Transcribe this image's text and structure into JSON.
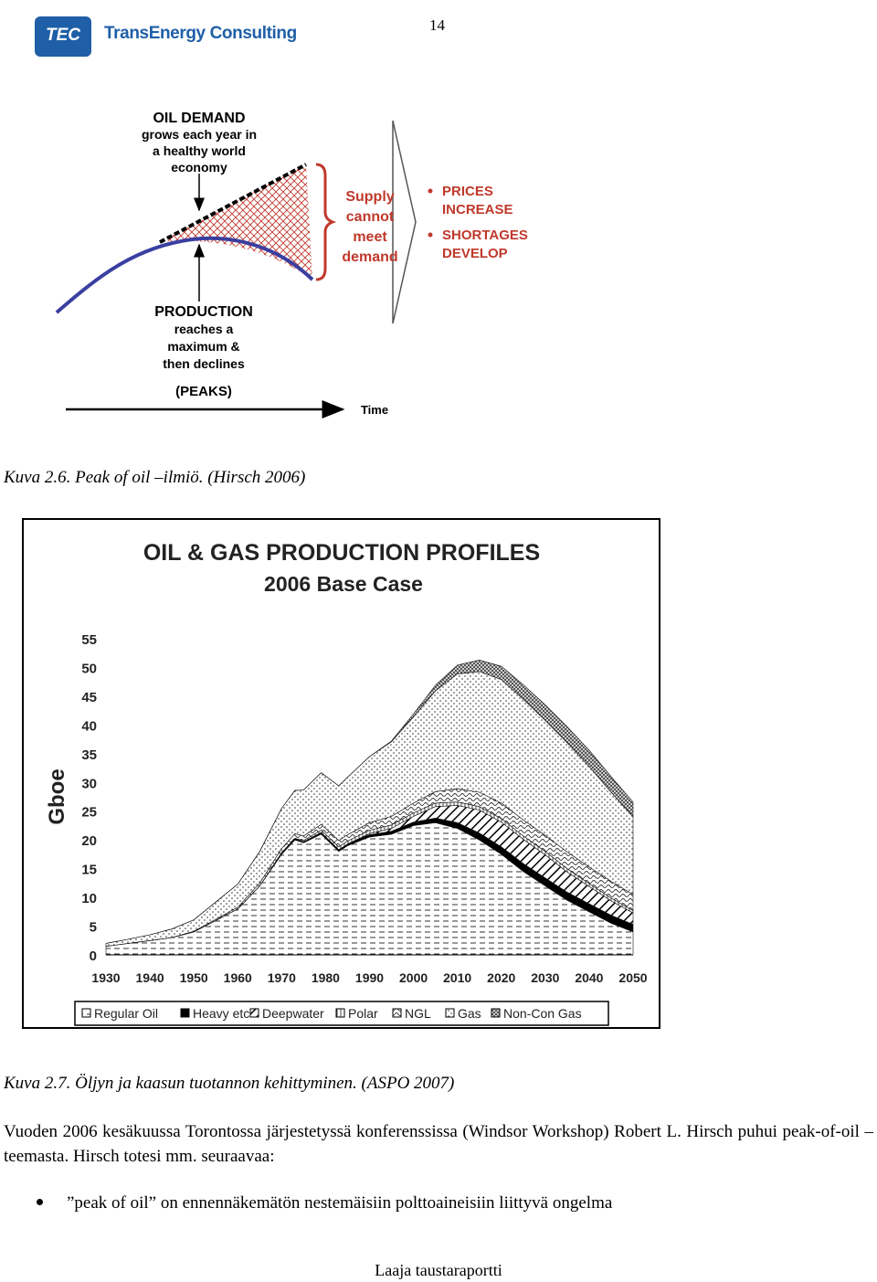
{
  "page_number": "14",
  "logo": {
    "mark": "TEC",
    "name": "TransEnergy Consulting"
  },
  "diagram": {
    "demand_title": "OIL DEMAND",
    "demand_lines": [
      "grows each year in",
      "a healthy world",
      "economy"
    ],
    "production_title": "PRODUCTION",
    "production_lines": [
      "reaches a",
      "maximum &",
      "then declines"
    ],
    "peaks_label": "(PEAKS)",
    "time_label": "Time",
    "supply_lines": [
      "Supply",
      "cannot",
      "meet",
      "demand"
    ],
    "effects": [
      {
        "lines": [
          "PRICES",
          "INCREASE"
        ]
      },
      {
        "lines": [
          "SHORTAGES",
          "DEVELOP"
        ]
      }
    ],
    "colors": {
      "demand_line": "#000000",
      "production_line": "#3a3fa0",
      "gap_fill": "#c0392b",
      "effects_text": "#c0392b",
      "supply_text": "#c0392b"
    }
  },
  "caption1": "Kuva 2.6. Peak of oil –ilmiö. (Hirsch 2006)",
  "chart_data": {
    "type": "area",
    "title": "OIL & GAS PRODUCTION PROFILES",
    "subtitle": "2006 Base Case",
    "ylabel": "Gboe",
    "xlabel": "",
    "ylim": [
      0,
      55
    ],
    "yticks": [
      0,
      5,
      10,
      15,
      20,
      25,
      30,
      35,
      40,
      45,
      50,
      55
    ],
    "xticks": [
      1930,
      1940,
      1950,
      1960,
      1970,
      1980,
      1990,
      2000,
      2010,
      2020,
      2030,
      2040,
      2050
    ],
    "x": [
      1930,
      1935,
      1940,
      1945,
      1950,
      1955,
      1960,
      1965,
      1970,
      1973,
      1975,
      1979,
      1983,
      1985,
      1990,
      1995,
      2000,
      2005,
      2010,
      2015,
      2020,
      2025,
      2030,
      2035,
      2040,
      2045,
      2050
    ],
    "stacked": true,
    "legend_position": "bottom",
    "series": [
      {
        "name": "Regular Oil",
        "values": [
          1.5,
          2.0,
          2.5,
          3.0,
          4.0,
          6.0,
          8.0,
          12.0,
          17.5,
          20.0,
          19.5,
          21.0,
          18.0,
          19.0,
          20.5,
          21.0,
          22.5,
          23.0,
          22.0,
          20.0,
          17.5,
          14.5,
          12.0,
          9.5,
          7.5,
          5.5,
          4.0
        ]
      },
      {
        "name": "Heavy etc",
        "values": [
          0,
          0,
          0,
          0,
          0,
          0,
          0,
          0,
          0.2,
          0.2,
          0.2,
          0.3,
          0.3,
          0.3,
          0.4,
          0.5,
          0.6,
          0.8,
          1.0,
          1.2,
          1.3,
          1.4,
          1.4,
          1.4,
          1.4,
          1.4,
          1.3
        ]
      },
      {
        "name": "Deepwater",
        "values": [
          0,
          0,
          0,
          0,
          0,
          0,
          0,
          0,
          0,
          0,
          0,
          0,
          0,
          0,
          0.2,
          0.5,
          1.0,
          2.0,
          3.0,
          4.0,
          4.3,
          4.2,
          4.0,
          3.5,
          3.0,
          2.5,
          2.0
        ]
      },
      {
        "name": "Polar",
        "values": [
          0,
          0,
          0,
          0,
          0,
          0,
          0,
          0,
          0.1,
          0.1,
          0.2,
          0.4,
          0.5,
          0.5,
          0.6,
          0.6,
          0.6,
          0.6,
          0.6,
          0.6,
          0.6,
          0.6,
          0.6,
          0.6,
          0.5,
          0.5,
          0.4
        ]
      },
      {
        "name": "NGL",
        "values": [
          0,
          0,
          0,
          0,
          0.1,
          0.2,
          0.3,
          0.5,
          0.7,
          0.8,
          0.8,
          1.0,
          1.1,
          1.1,
          1.3,
          1.5,
          1.7,
          2.0,
          2.3,
          2.5,
          2.7,
          2.8,
          2.8,
          2.9,
          2.9,
          2.9,
          2.8
        ]
      },
      {
        "name": "Gas",
        "values": [
          0.5,
          0.7,
          1.0,
          1.5,
          2.0,
          3.0,
          4.0,
          5.5,
          7.0,
          7.5,
          8.0,
          9.0,
          9.5,
          10.0,
          11.5,
          13.0,
          15.0,
          17.5,
          20.0,
          21.0,
          21.5,
          21.0,
          20.0,
          19.0,
          17.5,
          15.5,
          13.5
        ]
      },
      {
        "name": "Non-Con Gas",
        "values": [
          0,
          0,
          0,
          0,
          0,
          0,
          0,
          0,
          0,
          0,
          0,
          0,
          0,
          0,
          0,
          0.1,
          0.5,
          1.0,
          1.5,
          2.0,
          2.3,
          2.5,
          2.7,
          2.8,
          2.8,
          2.7,
          2.6
        ]
      }
    ]
  },
  "caption2": "Kuva 2.7. Öljyn ja kaasun tuotannon kehittyminen. (ASPO 2007)",
  "paragraph": "Vuoden 2006 kesäkuussa Torontossa järjestetyssä konferenssissa (Windsor Workshop) Robert L. Hirsch puhui peak-of-oil –teemasta. Hirsch totesi mm. seuraavaa:",
  "bullets": [
    "”peak of oil” on ennennäkemätön nestemäisiin polttoaineisiin liittyvä ongelma"
  ],
  "footer": "Laaja taustaraportti"
}
